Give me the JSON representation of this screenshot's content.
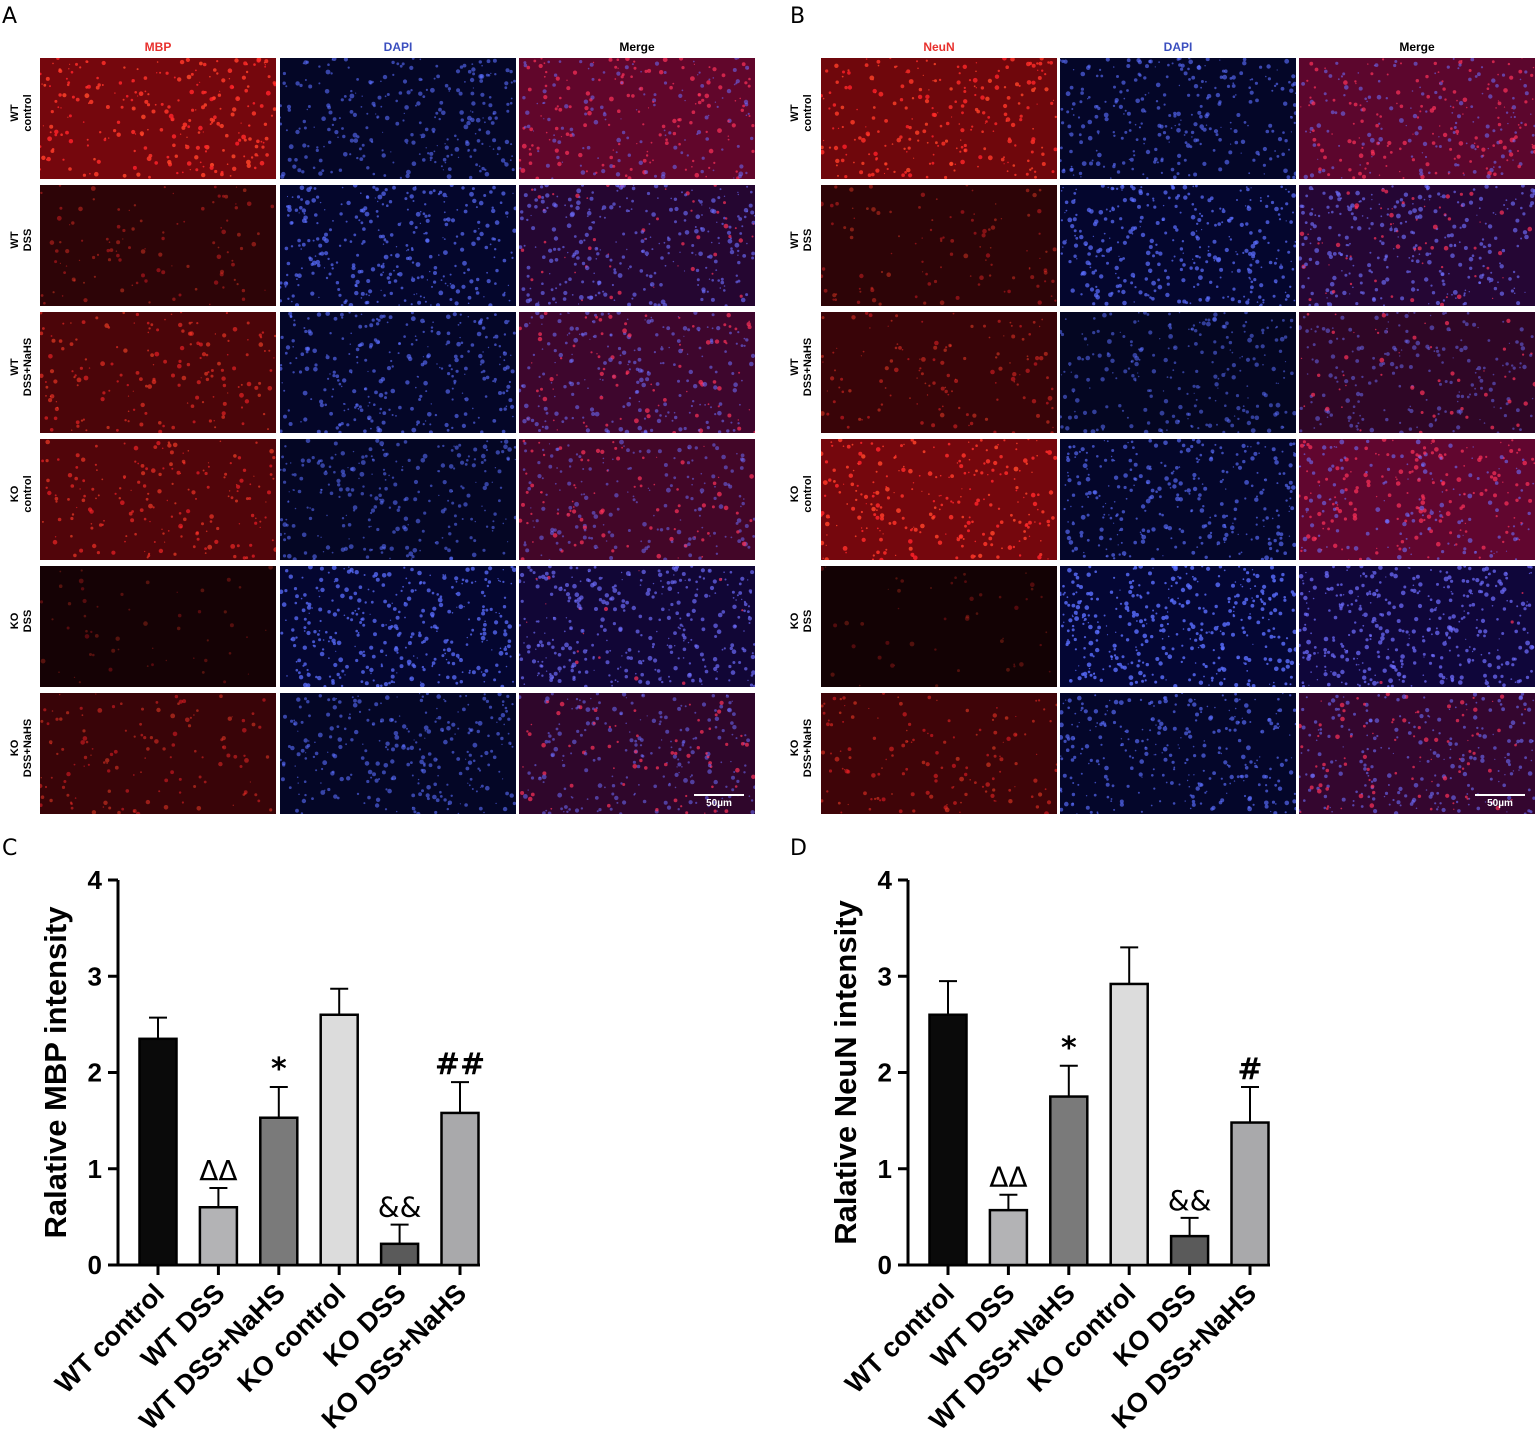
{
  "panels": {
    "a": {
      "letter": "A",
      "columns": [
        "MBP",
        "DAPI",
        "Merge"
      ],
      "column_colors": [
        "#e8302d",
        "#3b4fbf",
        "#000000"
      ],
      "scale": "50µm"
    },
    "b": {
      "letter": "B",
      "columns": [
        "NeuN",
        "DAPI",
        "Merge"
      ],
      "column_colors": [
        "#e8302d",
        "#3b4fbf",
        "#000000"
      ],
      "scale": "50µm"
    },
    "c": {
      "letter": "C"
    },
    "d": {
      "letter": "D"
    }
  },
  "rows": [
    {
      "line1": "WT",
      "line2": "control"
    },
    {
      "line1": "WT",
      "line2": "DSS"
    },
    {
      "line1": "WT",
      "line2": "DSS+NaHS"
    },
    {
      "line1": "KO",
      "line2": "control"
    },
    {
      "line1": "KO",
      "line2": "DSS"
    },
    {
      "line1": "KO",
      "line2": "DSS+NaHS"
    }
  ],
  "stain_levels": {
    "mbp": [
      0.85,
      0.25,
      0.5,
      0.55,
      0.05,
      0.35
    ],
    "neun": [
      0.8,
      0.25,
      0.35,
      0.85,
      0.03,
      0.4
    ],
    "dapi_a": [
      0.5,
      0.65,
      0.55,
      0.45,
      0.75,
      0.5
    ],
    "dapi_b": [
      0.55,
      0.7,
      0.4,
      0.6,
      0.85,
      0.6
    ]
  },
  "colors": {
    "red": "#d42020",
    "blue": "#3046c8",
    "bar_outline": "#000000"
  },
  "chart_data": [
    {
      "type": "bar",
      "categories": [
        "WT control",
        "WT DSS",
        "WT DSS+NaHS",
        "KO control",
        "KO DSS",
        "KO DSS+NaHS"
      ],
      "values": [
        2.35,
        0.6,
        1.53,
        2.6,
        0.22,
        1.58
      ],
      "errors": [
        0.22,
        0.2,
        0.32,
        0.27,
        0.2,
        0.32
      ],
      "annotations": [
        "",
        "ΔΔ",
        "*",
        "",
        "&&",
        "##"
      ],
      "bar_colors": [
        "#0a0a0a",
        "#b3b3b5",
        "#7a7a7a",
        "#dcdcdc",
        "#5a5a5a",
        "#a9a9ab"
      ],
      "ylabel": "Ralative MBP intensity",
      "ylim": [
        0,
        4
      ],
      "yticks": [
        "0",
        "1",
        "2",
        "3",
        "4"
      ]
    },
    {
      "type": "bar",
      "categories": [
        "WT control",
        "WT DSS",
        "WT DSS+NaHS",
        "KO control",
        "KO DSS",
        "KO DSS+NaHS"
      ],
      "values": [
        2.6,
        0.57,
        1.75,
        2.92,
        0.3,
        1.48
      ],
      "errors": [
        0.35,
        0.16,
        0.32,
        0.38,
        0.19,
        0.37
      ],
      "annotations": [
        "",
        "ΔΔ",
        "*",
        "",
        "&&",
        "#"
      ],
      "bar_colors": [
        "#0a0a0a",
        "#b3b3b5",
        "#7a7a7a",
        "#dcdcdc",
        "#5a5a5a",
        "#a9a9ab"
      ],
      "ylabel": "Ralative NeuN intensity",
      "ylim": [
        0,
        4
      ],
      "yticks": [
        "0",
        "1",
        "2",
        "3",
        "4"
      ]
    }
  ]
}
